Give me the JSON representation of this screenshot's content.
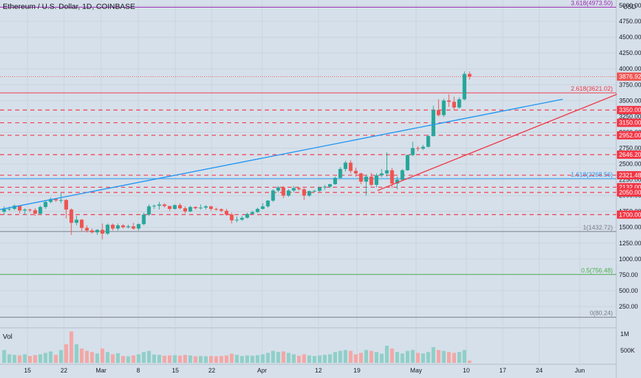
{
  "header": {
    "title": "Ethereum / U.S. Dollar, 1D, COINBASE"
  },
  "axis": {
    "currency": "USD"
  },
  "volume_panel": {
    "label": "Vol",
    "ticks": [
      "1M",
      "500K"
    ]
  },
  "colors": {
    "up": "#26a69a",
    "down": "#ef5350",
    "trendline_blue": "#2196f3",
    "trendline_red": "#f23645",
    "support_dashed": "#f23645",
    "fib_purple": "#9c27b0",
    "fib_green": "#4caf50",
    "fib_gray": "#787b86"
  },
  "chart_data": {
    "type": "candlestick",
    "title": "Ethereum / U.S. Dollar, 1D, COINBASE",
    "ylabel": "USD",
    "ylim": [
      0,
      5000
    ],
    "y_ticks": [
      250,
      500,
      750,
      1000,
      1250,
      1500,
      1750,
      2000,
      2250,
      2500,
      2750,
      3000,
      3250,
      3500,
      3750,
      4000,
      4250,
      4500,
      4750,
      5000
    ],
    "y_tick_labels": [
      "250.00",
      "500.00",
      "750.00",
      "1000.00",
      "1250.00",
      "1500.00",
      "1750.00",
      "2000.00",
      "2250.00",
      "2500.00",
      "2750.00",
      "3000.00",
      "3250.00",
      "3500.00",
      "3750.00",
      "4000.00",
      "4250.00",
      "4500.00",
      "4750.00",
      "5000.00"
    ],
    "x_ticks": [
      "15",
      "22",
      "Mar",
      "8",
      "15",
      "22",
      "Apr",
      "12",
      "19",
      "May",
      "10",
      "17",
      "24",
      "Jun"
    ],
    "grid": true,
    "candles_note": "Daily OHLC, Feb 11 - May 10, 2021 (values estimated from axis)",
    "candles": [
      [
        1745,
        1830,
        1700,
        1785,
        450
      ],
      [
        1785,
        1825,
        1760,
        1790,
        300
      ],
      [
        1790,
        1860,
        1770,
        1840,
        280
      ],
      [
        1840,
        1845,
        1720,
        1765,
        260
      ],
      [
        1765,
        1800,
        1700,
        1780,
        300
      ],
      [
        1780,
        1795,
        1740,
        1770,
        240
      ],
      [
        1770,
        1800,
        1680,
        1715,
        270
      ],
      [
        1715,
        1840,
        1700,
        1820,
        300
      ],
      [
        1820,
        1920,
        1790,
        1900,
        350
      ],
      [
        1900,
        1970,
        1880,
        1945,
        400
      ],
      [
        1945,
        1960,
        1900,
        1925,
        280
      ],
      [
        1925,
        2040,
        1880,
        1930,
        450
      ],
      [
        1930,
        1945,
        1640,
        1780,
        650
      ],
      [
        1780,
        1800,
        1380,
        1570,
        1100
      ],
      [
        1570,
        1680,
        1530,
        1620,
        650
      ],
      [
        1620,
        1630,
        1440,
        1490,
        500
      ],
      [
        1490,
        1530,
        1420,
        1450,
        420
      ],
      [
        1450,
        1480,
        1400,
        1420,
        380
      ],
      [
        1420,
        1470,
        1380,
        1460,
        330
      ],
      [
        1460,
        1560,
        1310,
        1400,
        500
      ],
      [
        1400,
        1560,
        1380,
        1540,
        380
      ],
      [
        1540,
        1560,
        1450,
        1480,
        300
      ],
      [
        1480,
        1560,
        1450,
        1530,
        340
      ],
      [
        1530,
        1550,
        1480,
        1500,
        240
      ],
      [
        1500,
        1540,
        1480,
        1515,
        230
      ],
      [
        1515,
        1570,
        1460,
        1480,
        260
      ],
      [
        1480,
        1560,
        1450,
        1550,
        300
      ],
      [
        1550,
        1730,
        1530,
        1700,
        380
      ],
      [
        1700,
        1860,
        1680,
        1830,
        420
      ],
      [
        1830,
        1860,
        1790,
        1840,
        290
      ],
      [
        1840,
        1900,
        1780,
        1860,
        280
      ],
      [
        1860,
        1880,
        1810,
        1835,
        250
      ],
      [
        1835,
        1840,
        1760,
        1790,
        260
      ],
      [
        1790,
        1860,
        1780,
        1850,
        270
      ],
      [
        1850,
        1880,
        1780,
        1800,
        250
      ],
      [
        1800,
        1830,
        1720,
        1750,
        280
      ],
      [
        1750,
        1840,
        1740,
        1820,
        260
      ],
      [
        1820,
        1830,
        1780,
        1800,
        230
      ],
      [
        1800,
        1860,
        1780,
        1810,
        240
      ],
      [
        1810,
        1850,
        1780,
        1830,
        230
      ],
      [
        1830,
        1840,
        1760,
        1790,
        240
      ],
      [
        1790,
        1810,
        1760,
        1785,
        230
      ],
      [
        1785,
        1800,
        1740,
        1760,
        240
      ],
      [
        1760,
        1790,
        1680,
        1700,
        260
      ],
      [
        1700,
        1730,
        1560,
        1610,
        320
      ],
      [
        1610,
        1670,
        1580,
        1620,
        280
      ],
      [
        1620,
        1680,
        1600,
        1650,
        240
      ],
      [
        1650,
        1730,
        1640,
        1710,
        260
      ],
      [
        1710,
        1760,
        1700,
        1740,
        250
      ],
      [
        1740,
        1810,
        1730,
        1790,
        270
      ],
      [
        1790,
        1880,
        1780,
        1830,
        300
      ],
      [
        1830,
        1930,
        1810,
        1920,
        350
      ],
      [
        1920,
        2100,
        1900,
        2080,
        420
      ],
      [
        2080,
        2150,
        2050,
        2130,
        380
      ],
      [
        2130,
        2150,
        1960,
        2000,
        400
      ],
      [
        2000,
        2100,
        1980,
        2080,
        350
      ],
      [
        2080,
        2150,
        2050,
        2120,
        300
      ],
      [
        2120,
        2130,
        2080,
        2100,
        250
      ],
      [
        2100,
        2120,
        1930,
        2000,
        300
      ],
      [
        2000,
        2080,
        1980,
        2070,
        260
      ],
      [
        2070,
        2090,
        2050,
        2075,
        240
      ],
      [
        2075,
        2140,
        2060,
        2130,
        260
      ],
      [
        2130,
        2170,
        2090,
        2140,
        280
      ],
      [
        2140,
        2190,
        2120,
        2180,
        300
      ],
      [
        2180,
        2300,
        2170,
        2280,
        380
      ],
      [
        2280,
        2450,
        2260,
        2420,
        420
      ],
      [
        2420,
        2550,
        2380,
        2520,
        450
      ],
      [
        2520,
        2560,
        2350,
        2390,
        420
      ],
      [
        2390,
        2440,
        2300,
        2350,
        300
      ],
      [
        2350,
        2360,
        2180,
        2220,
        350
      ],
      [
        2220,
        2330,
        2000,
        2300,
        450
      ],
      [
        2300,
        2360,
        2150,
        2170,
        420
      ],
      [
        2170,
        2350,
        2130,
        2320,
        380
      ],
      [
        2320,
        2420,
        2290,
        2350,
        320
      ],
      [
        2350,
        2680,
        2300,
        2400,
        600
      ],
      [
        2400,
        2440,
        2120,
        2190,
        500
      ],
      [
        2190,
        2300,
        2100,
        2250,
        380
      ],
      [
        2250,
        2420,
        2240,
        2400,
        330
      ],
      [
        2400,
        2650,
        2390,
        2640,
        420
      ],
      [
        2640,
        2850,
        2620,
        2750,
        450
      ],
      [
        2750,
        2780,
        2700,
        2740,
        350
      ],
      [
        2740,
        2800,
        2720,
        2770,
        330
      ],
      [
        2770,
        2960,
        2760,
        2940,
        380
      ],
      [
        2940,
        3420,
        2930,
        3350,
        550
      ],
      [
        3350,
        3520,
        3250,
        3270,
        450
      ],
      [
        3270,
        3530,
        3240,
        3500,
        420
      ],
      [
        3500,
        3600,
        3400,
        3480,
        380
      ],
      [
        3480,
        3560,
        3350,
        3390,
        350
      ],
      [
        3390,
        3550,
        3370,
        3520,
        380
      ],
      [
        3520,
        3960,
        3500,
        3920,
        450
      ],
      [
        3920,
        3960,
        3830,
        3876.92,
        80
      ]
    ],
    "volume_series": {
      "name": "Vol",
      "ylim": [
        0,
        1200000
      ]
    },
    "horizontal_levels": [
      {
        "value": 3350.0,
        "label": "3350.00",
        "style": "dashed-red"
      },
      {
        "value": 3150.0,
        "label": "3150.00",
        "style": "dashed-red"
      },
      {
        "value": 2952.0,
        "label": "2952.00",
        "style": "dashed-red"
      },
      {
        "value": 2646.2,
        "label": "2646.20",
        "style": "dashed-red"
      },
      {
        "value": 2321.48,
        "label": "2321.48",
        "style": "dashed-red"
      },
      {
        "value": 2132.0,
        "label": "2132.00",
        "style": "dashed-red"
      },
      {
        "value": 2050.0,
        "label": "2050.00",
        "style": "dashed-red"
      },
      {
        "value": 1700.0,
        "label": "1700.00",
        "style": "dashed-red"
      }
    ],
    "fib_levels": [
      {
        "value": 4973.5,
        "label": "3.618(4973.50)",
        "color": "#9c27b0"
      },
      {
        "value": 3621.02,
        "label": "2.618(3621.02)",
        "color": "#f23645"
      },
      {
        "value": 2268.56,
        "label": "1.618(2268.56)",
        "color": "#2196f3"
      },
      {
        "value": 1432.72,
        "label": "1(1432.72)",
        "color": "#787b86"
      },
      {
        "value": 756.48,
        "label": "0.5(756.48)",
        "color": "#4caf50"
      },
      {
        "value": 80.24,
        "label": "0(80.24)",
        "color": "#787b86"
      }
    ],
    "current_price": {
      "value": 3876.92,
      "label": "3876.92"
    },
    "trendlines": [
      {
        "color": "blue",
        "from_index": 0,
        "from_value": 1780,
        "to_index": 108,
        "to_value": 3520
      },
      {
        "color": "red",
        "from_index": 73,
        "from_value": 2080,
        "to_index": 124,
        "to_value": 3780
      }
    ]
  }
}
